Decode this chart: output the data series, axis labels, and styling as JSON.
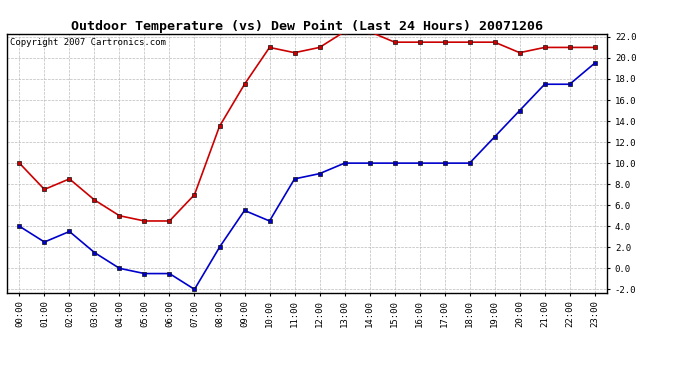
{
  "title": "Outdoor Temperature (vs) Dew Point (Last 24 Hours) 20071206",
  "copyright_text": "Copyright 2007 Cartronics.com",
  "x_labels": [
    "00:00",
    "01:00",
    "02:00",
    "03:00",
    "04:00",
    "05:00",
    "06:00",
    "07:00",
    "08:00",
    "09:00",
    "10:00",
    "11:00",
    "12:00",
    "13:00",
    "14:00",
    "15:00",
    "16:00",
    "17:00",
    "18:00",
    "19:00",
    "20:00",
    "21:00",
    "22:00",
    "23:00"
  ],
  "temp_data": [
    10.0,
    7.5,
    8.5,
    6.5,
    5.0,
    4.5,
    4.5,
    7.0,
    13.5,
    17.5,
    21.0,
    20.5,
    21.0,
    22.5,
    22.5,
    21.5,
    21.5,
    21.5,
    21.5,
    21.5,
    20.5,
    21.0,
    21.0,
    21.0
  ],
  "dew_data": [
    4.0,
    2.5,
    3.5,
    1.5,
    0.0,
    -0.5,
    -0.5,
    -2.0,
    2.0,
    5.5,
    4.5,
    8.5,
    9.0,
    10.0,
    10.0,
    10.0,
    10.0,
    10.0,
    10.0,
    12.5,
    15.0,
    17.5,
    17.5,
    19.5
  ],
  "temp_color": "#cc0000",
  "dew_color": "#0000cc",
  "ylim_min": -2.0,
  "ylim_max": 22.0,
  "yticks": [
    -2.0,
    0.0,
    2.0,
    4.0,
    6.0,
    8.0,
    10.0,
    12.0,
    14.0,
    16.0,
    18.0,
    20.0,
    22.0
  ],
  "background_color": "#ffffff",
  "grid_color": "#bbbbbb",
  "title_fontsize": 9.5,
  "copyright_fontsize": 6.5,
  "tick_fontsize": 6.5,
  "line_width": 1.2,
  "marker": "s",
  "marker_size": 3,
  "marker_color": "#111111"
}
